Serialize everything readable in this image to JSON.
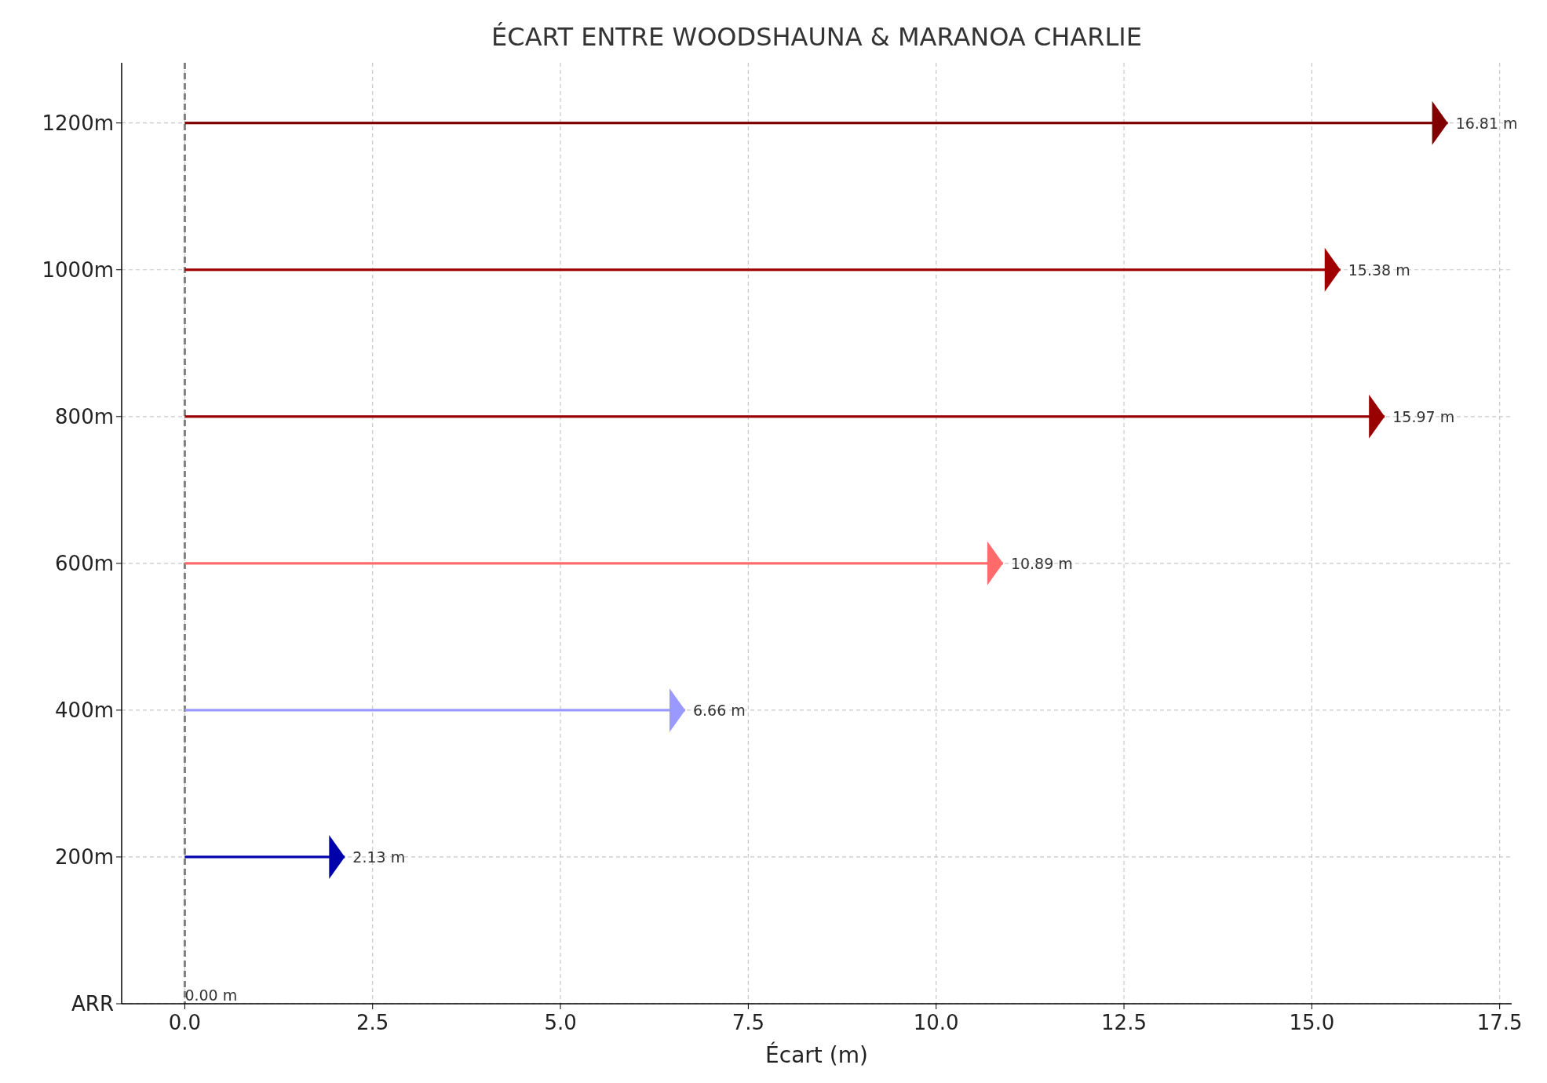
{
  "chart_data": {
    "type": "bar",
    "orientation": "horizontal",
    "title": "ÉCART ENTRE WOODSHAUNA & MARANOA CHARLIE",
    "xlabel": "Écart (m)",
    "categories": [
      "1200m",
      "1000m",
      "800m",
      "600m",
      "400m",
      "200m",
      "ARR"
    ],
    "values": [
      16.81,
      15.38,
      15.97,
      10.89,
      6.66,
      2.13,
      0.0
    ],
    "colors": [
      "#800000",
      "#a00000",
      "#990000",
      "#ff6b6b",
      "#9999ff",
      "#0000aa",
      "#0000aa"
    ],
    "value_labels": [
      "16.81 m",
      "15.38 m",
      "15.97 m",
      "10.89 m",
      "6.66 m",
      "2.13 m",
      "0.00 m"
    ],
    "xlim": [
      -0.84,
      17.66
    ],
    "xticks": [
      {
        "value": 0,
        "label": "0.0"
      },
      {
        "value": 2.5,
        "label": "2.5"
      },
      {
        "value": 5,
        "label": "5.0"
      },
      {
        "value": 7.5,
        "label": "7.5"
      },
      {
        "value": 10,
        "label": "10.0"
      },
      {
        "value": 12.5,
        "label": "12.5"
      },
      {
        "value": 15,
        "label": "15.0"
      },
      {
        "value": 17.5,
        "label": "17.5"
      }
    ],
    "ref_lines": [
      {
        "axis": "x",
        "value": 0,
        "color": "#808080",
        "line_style": "dashed"
      }
    ],
    "grid": true
  }
}
